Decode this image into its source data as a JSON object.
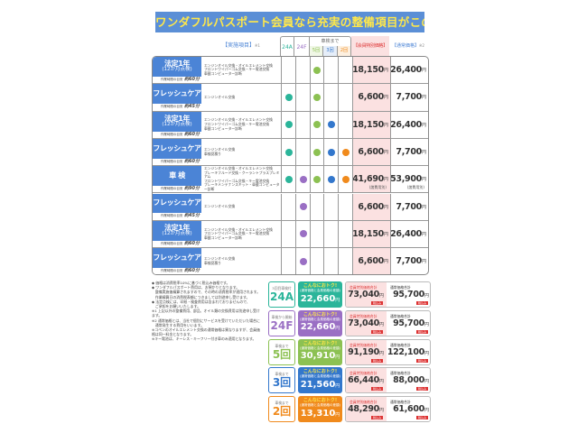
{
  "title": "ワンダフルパスポート会員なら充実の整備項目がこの価格で!",
  "header": {
    "items": "【実施項目】",
    "items_note": "※1",
    "col_24a": "24A",
    "col_24f": "24F",
    "group": "車検まで",
    "col_5": "5回",
    "col_3": "3回",
    "col_2": "2回",
    "member": "【会員特別価格】",
    "normal": "【通常価格】",
    "normal_note": "※2"
  },
  "colors": {
    "c24a": "#2bb59a",
    "c24f": "#9a6fc4",
    "c5": "#8cc152",
    "c3": "#3377cc",
    "c2": "#f08a1c",
    "label_bg": "#4b84d6"
  },
  "rows": [
    {
      "name": "法定1年",
      "sub": "(12か月点検)",
      "time_label": "作業時間の目安",
      "time": "約60分",
      "items": [
        "エンジンオイル交換・オイルエレメント交換",
        "フロントワイパーゴム交換・キー電池交換",
        "車載コンピューター診断"
      ],
      "dots": [
        0,
        0,
        1,
        0,
        0
      ],
      "member": "18,150",
      "normal": "26,400",
      "yen": "円"
    },
    {
      "name": "フレッシュケア",
      "sub": "",
      "time_label": "作業時間の目安",
      "time": "約45分",
      "items": [
        "エンジンオイル交換"
      ],
      "dots": [
        1,
        0,
        1,
        0,
        0
      ],
      "member": "6,600",
      "normal": "7,700",
      "yen": "円"
    },
    {
      "name": "法定1年",
      "sub": "(12か月点検)",
      "time_label": "作業時間の目安",
      "time": "約60分",
      "items": [
        "エンジンオイル交換・オイルエレメント交換",
        "フロントワイパーゴム交換・キー電池交換",
        "車載コンピューター診断"
      ],
      "dots": [
        1,
        0,
        1,
        1,
        0
      ],
      "member": "18,150",
      "normal": "26,400",
      "yen": "円"
    },
    {
      "name": "フレッシュケア",
      "sub": "",
      "time_label": "作業時間の目安",
      "time": "約60分",
      "items": [
        "エンジンオイル交換",
        "車検見積り"
      ],
      "dots": [
        1,
        0,
        1,
        1,
        1
      ],
      "member": "6,600",
      "normal": "7,700",
      "yen": "円"
    },
    {
      "name": "車 検",
      "sub": "",
      "time_label": "作業時間の目安",
      "time": "約90分",
      "items": [
        "エンジンオイル交換・オイルエレメント交換",
        "ブレーキフルード交換・クーラントプラスプレミアム",
        "フロントワイパーゴム交換・キー電池交換",
        "ブレーキメンテナンスキット・車載コンピューター診断"
      ],
      "dots": [
        1,
        1,
        1,
        1,
        1
      ],
      "member": "41,690",
      "normal": "53,900",
      "yen": "円",
      "member_sub": "(諸費用別)",
      "normal_sub": "(諸費用別)"
    },
    {
      "name": "フレッシュケア",
      "sub": "",
      "time_label": "作業時間の目安",
      "time": "約45分",
      "items": [
        "エンジンオイル交換"
      ],
      "dots": [
        0,
        1,
        0,
        0,
        0
      ],
      "member": "6,600",
      "normal": "7,700",
      "yen": "円"
    },
    {
      "name": "法定1年",
      "sub": "(12か月点検)",
      "time_label": "作業時間の目安",
      "time": "約60分",
      "items": [
        "エンジンオイル交換・オイルエレメント交換",
        "フロントワイパーゴム交換・キー電池交換",
        "車載コンピューター診断"
      ],
      "dots": [
        0,
        1,
        0,
        0,
        0
      ],
      "member": "18,150",
      "normal": "26,400",
      "yen": "円"
    },
    {
      "name": "フレッシュケア",
      "sub": "",
      "time_label": "作業時間の目安",
      "time": "約60分",
      "items": [
        "エンジンオイル交換",
        "車検見積り"
      ],
      "dots": [
        0,
        1,
        0,
        0,
        0
      ],
      "member": "6,600",
      "normal": "7,700",
      "yen": "円"
    }
  ],
  "notes": [
    "◆ 価格は消費税率10%に基づく税込み価格です。",
    "◆ ワンダフルパスポート費用は、お預かりとなります。",
    "　整備実施後精算されますので、その時の消費税率が適用されます。",
    "　作業精算日の消費税表額につきましては別途申し受けます。",
    "◆ 法定点検には、印紙・検査費用は含まれておりませんので、",
    "　ご承知をお願いいたします。",
    "※1 上記以外の整備費用、部品、オイル類の交換費用は別途申し受けます。",
    "※2 通常価格とは、当社で個別にサービスを受けていただいた場合に",
    "　通常発生する費用をいいます。",
    "※コペンのオイルエレメント交換の通常価格は異なりますが、会員価格は同一料金となります。",
    "※キー電池は、キーレス・キーフリー付き車のみ適用となります。"
  ],
  "cards": [
    {
      "small": "3回目車検付",
      "big": "24A",
      "color": "#2bb59a",
      "deal": "こんなにおトク!",
      "deal_sub": "(通常価格と会員価格の差額)",
      "saving": "22,660",
      "member_label": "会員特別価格合計",
      "member_total": "73,040",
      "normal_label": "通常価格合計",
      "normal_total": "95,700",
      "yen": "円",
      "tax": "税込み"
    },
    {
      "small": "車検から開始",
      "big": "24F",
      "color": "#9a6fc4",
      "deal": "こんなにおトク!",
      "deal_sub": "(通常価格と会員価格の差額)",
      "saving": "22,660",
      "member_label": "会員特別価格合計",
      "member_total": "73,040",
      "normal_label": "通常価格合計",
      "normal_total": "95,700",
      "yen": "円",
      "tax": "税込み"
    },
    {
      "small": "車検まで",
      "big": "5回",
      "color": "#8cc152",
      "deal": "こんなにおトク!",
      "deal_sub": "(通常価格と会員価格の差額)",
      "saving": "30,910",
      "member_label": "会員特別価格合計",
      "member_total": "91,190",
      "normal_label": "通常価格合計",
      "normal_total": "122,100",
      "yen": "円",
      "tax": "税込み"
    },
    {
      "small": "車検まで",
      "big": "3回",
      "color": "#3377cc",
      "deal": "こんなにおトク!",
      "deal_sub": "(通常価格と会員価格の差額)",
      "saving": "21,560",
      "member_label": "会員特別価格合計",
      "member_total": "66,440",
      "normal_label": "通常価格合計",
      "normal_total": "88,000",
      "yen": "円",
      "tax": "税込み"
    },
    {
      "small": "車検まで",
      "big": "2回",
      "color": "#f08a1c",
      "deal": "こんなにおトク!",
      "deal_sub": "(通常価格と会員価格の差額)",
      "saving": "13,310",
      "member_label": "会員特別価格合計",
      "member_total": "48,290",
      "normal_label": "通常価格合計",
      "normal_total": "61,600",
      "yen": "円",
      "tax": "税込み"
    }
  ]
}
